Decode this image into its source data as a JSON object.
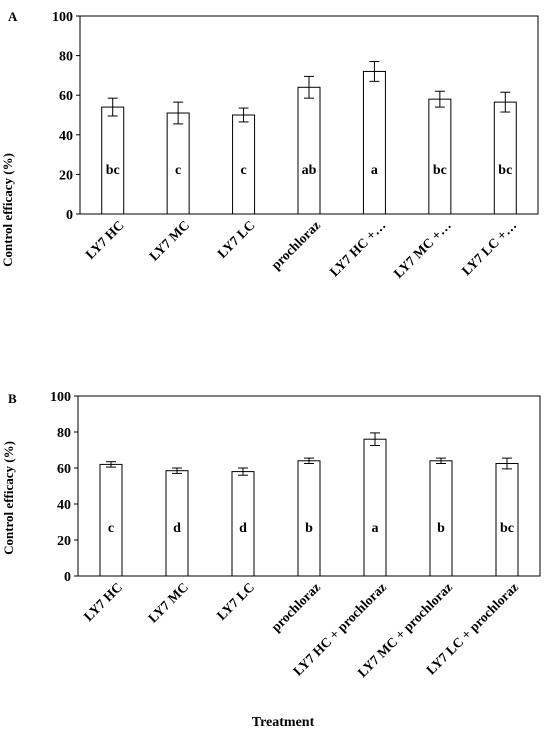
{
  "panels": {
    "a": {
      "label": "A",
      "ylabel": "Control efficacy  (%)"
    },
    "b": {
      "label": "B",
      "ylabel": "Control efficacy (%)",
      "xlabel": "Treatment"
    }
  },
  "chart_data": [
    {
      "type": "bar",
      "panel": "A",
      "ylabel": "Control efficacy  (%)",
      "ylim": [
        0,
        100
      ],
      "yticks": [
        0,
        20,
        40,
        60,
        80,
        100
      ],
      "categories": [
        "LY7 HC",
        "LY7 MC",
        "LY7 LC",
        "prochloraz",
        "LY7 HC +…",
        "LY7 MC +…",
        "LY7 LC +…"
      ],
      "values": [
        54,
        51,
        50,
        64,
        72,
        58,
        56.5
      ],
      "errors": [
        4.5,
        5.5,
        3.5,
        5.5,
        5,
        4,
        5
      ],
      "letters": [
        "bc",
        "c",
        "c",
        "ab",
        "a",
        "bc",
        "bc"
      ],
      "bar_color": "#ffffff",
      "grid": false
    },
    {
      "type": "bar",
      "panel": "B",
      "ylabel": "Control efficacy (%)",
      "xlabel": "Treatment",
      "ylim": [
        0,
        100
      ],
      "yticks": [
        0,
        20,
        40,
        60,
        80,
        100
      ],
      "categories": [
        "LY7 HC",
        "LY7 MC",
        "LY7 LC",
        "prochloraz",
        "LY7 HC + prochloraz",
        "LY7 MC + prochloraz",
        "LY7 LC + prochloraz"
      ],
      "values": [
        62,
        58.5,
        58,
        64,
        76,
        64,
        62.5
      ],
      "errors": [
        1.5,
        1.5,
        2,
        1.5,
        3.5,
        1.5,
        3
      ],
      "letters": [
        "c",
        "d",
        "d",
        "b",
        "a",
        "b",
        "bc"
      ],
      "bar_color": "#ffffff",
      "grid": false
    }
  ]
}
